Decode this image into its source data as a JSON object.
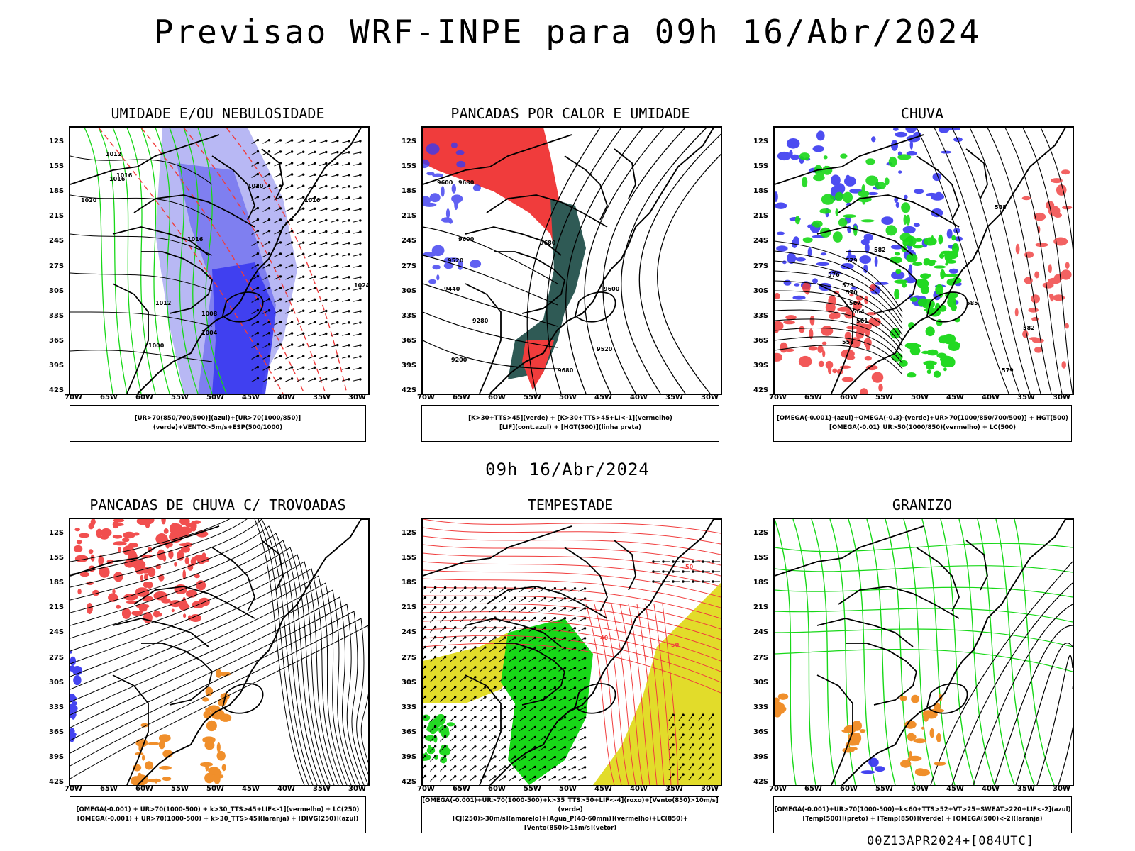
{
  "main_title": "Previsao WRF-INPE  para 09h 16/Abr/2024",
  "mid_title": "09h 16/Abr/2024",
  "footer": "00Z13APR2024+[084UTC]",
  "lat_labels": [
    "12S",
    "15S",
    "18S",
    "21S",
    "24S",
    "27S",
    "30S",
    "33S",
    "36S",
    "39S",
    "42S"
  ],
  "lon_labels": [
    "70W",
    "65W",
    "60W",
    "55W",
    "50W",
    "45W",
    "40W",
    "35W",
    "30W"
  ],
  "panels": [
    {
      "title": "UMIDADE E/OU NEBULOSIDADE",
      "legend": [
        "[UR>70(850/700/500)](azul)+[UR>70(1000/850)](verde)+VENTO>5m/s+ESP(500/1000)"
      ],
      "contour_labels": [
        "1012",
        "1016",
        "1016",
        "1020",
        "1020",
        "1016",
        "1016",
        "1024",
        "1012",
        "1008",
        "1004",
        "1000"
      ]
    },
    {
      "title": "PANCADAS POR CALOR E UMIDADE",
      "legend": [
        "[K>30+TTS>45](verde) + [K>30+TTS>45+LI<-1](vermelho)",
        "[LIF](cont.azul) + [HGT(300)](linha preta)"
      ],
      "contour_labels": [
        "9600",
        "9680",
        "9600",
        "9520",
        "9440",
        "9280",
        "9200",
        "9680",
        "9600",
        "9520",
        "9680"
      ]
    },
    {
      "title": "CHUVA",
      "legend": [
        "[OMEGA(-0.001)-(azul)+OMEGA(-0.3)-(verde)+UR>70(1000/850/700/500)] + HGT(500)",
        "[OMEGA(-0.01)_UR>50(1000/850)(vermelho) + LC(500)"
      ],
      "contour_labels": [
        "588",
        "582",
        "579",
        "576",
        "573",
        "570",
        "567",
        "564",
        "561",
        "558",
        "585",
        "582",
        "579"
      ]
    },
    {
      "title": "PANCADAS DE CHUVA C/ TROVOADAS",
      "legend": [
        "[OMEGA(-0.001) + UR>70(1000-500) + k>30_TTS>45+LIF<-1](vermelho) + LC(250)",
        "[OMEGA(-0.001) + UR>70(1000-500) + k>30_TTS>45](laranja) + [DIVG(250)](azul)"
      ],
      "contour_labels": []
    },
    {
      "title": "TEMPESTADE",
      "legend": [
        "[OMEGA(-0.001)+UR>70(1000-500)+k>35_TTS>50+LIF<-4](roxo)+[Vento(850)>10m/s](verde)",
        "[CJ(250)>30m/s](amarelo)+[Agua_P(40-60mm)](vermelho)+LC(850)+[Vento(850)>15m/s](vetor)"
      ],
      "contour_labels": [
        "50",
        "40",
        "50"
      ]
    },
    {
      "title": "GRANIZO",
      "legend": [
        "[OMEGA(-0.001)+UR>70(1000-500)+k<60+TTS>52+VT>25+SWEAT>220+LIF<-2](azul)",
        "[Temp(500)](preto) + [Temp(850)](verde) + [OMEGA(500)<-2](laranja)"
      ],
      "contour_labels": []
    }
  ],
  "colors": {
    "blue": "#3a3af0",
    "light_blue": "#b8b8f4",
    "mid_blue": "#7f7ff0",
    "green": "#18d818",
    "red": "#f03c3c",
    "dark_teal": "#2f5a55",
    "yellow": "#e2dc2a",
    "orange": "#f08a20"
  }
}
